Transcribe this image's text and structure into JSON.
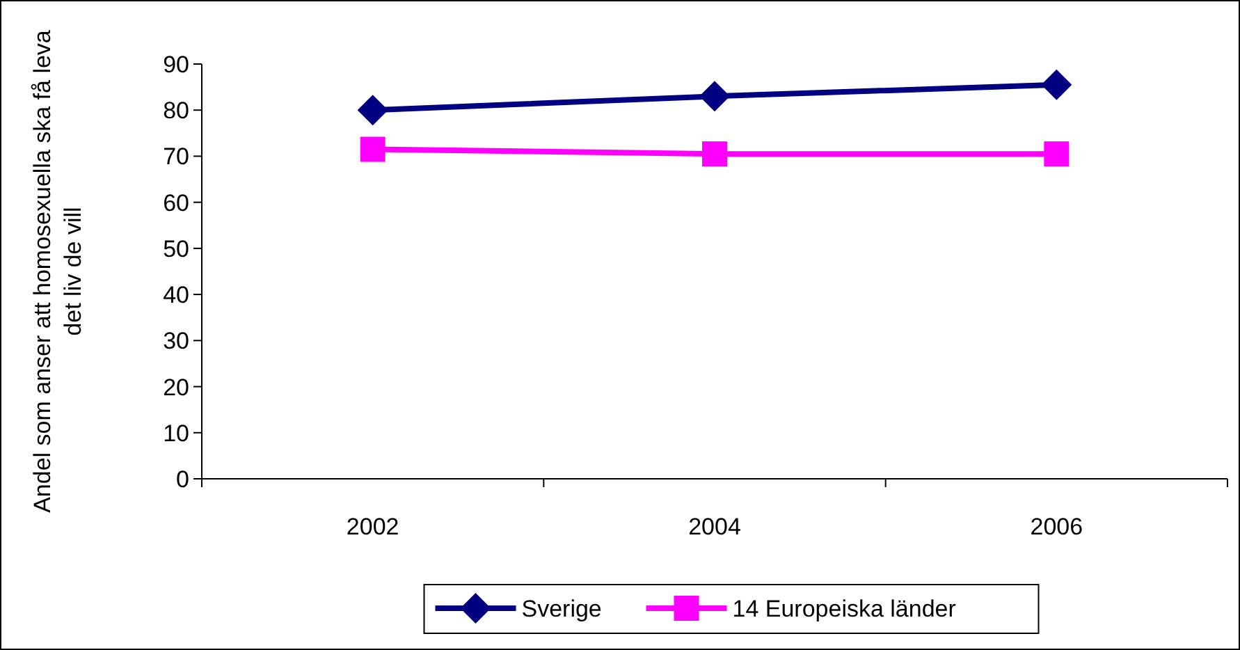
{
  "chart_data": {
    "type": "line",
    "ylabel": "Andel som anser att homosexuella ska få leva det liv de vill",
    "categories": [
      "2002",
      "2004",
      "2006"
    ],
    "series": [
      {
        "name": "Sverige",
        "color": "#000080",
        "values": [
          80,
          83,
          85.5
        ],
        "marker": "diamond"
      },
      {
        "name": "14 Europeiska länder",
        "color": "#ff00ff",
        "values": [
          71.5,
          70.5,
          70.5
        ],
        "marker": "square"
      }
    ],
    "ylim": [
      0,
      90
    ],
    "yticks": [
      0,
      10,
      20,
      30,
      40,
      50,
      60,
      70,
      80,
      90
    ],
    "grid": false,
    "legend": "bottom",
    "line_style": "solid"
  }
}
